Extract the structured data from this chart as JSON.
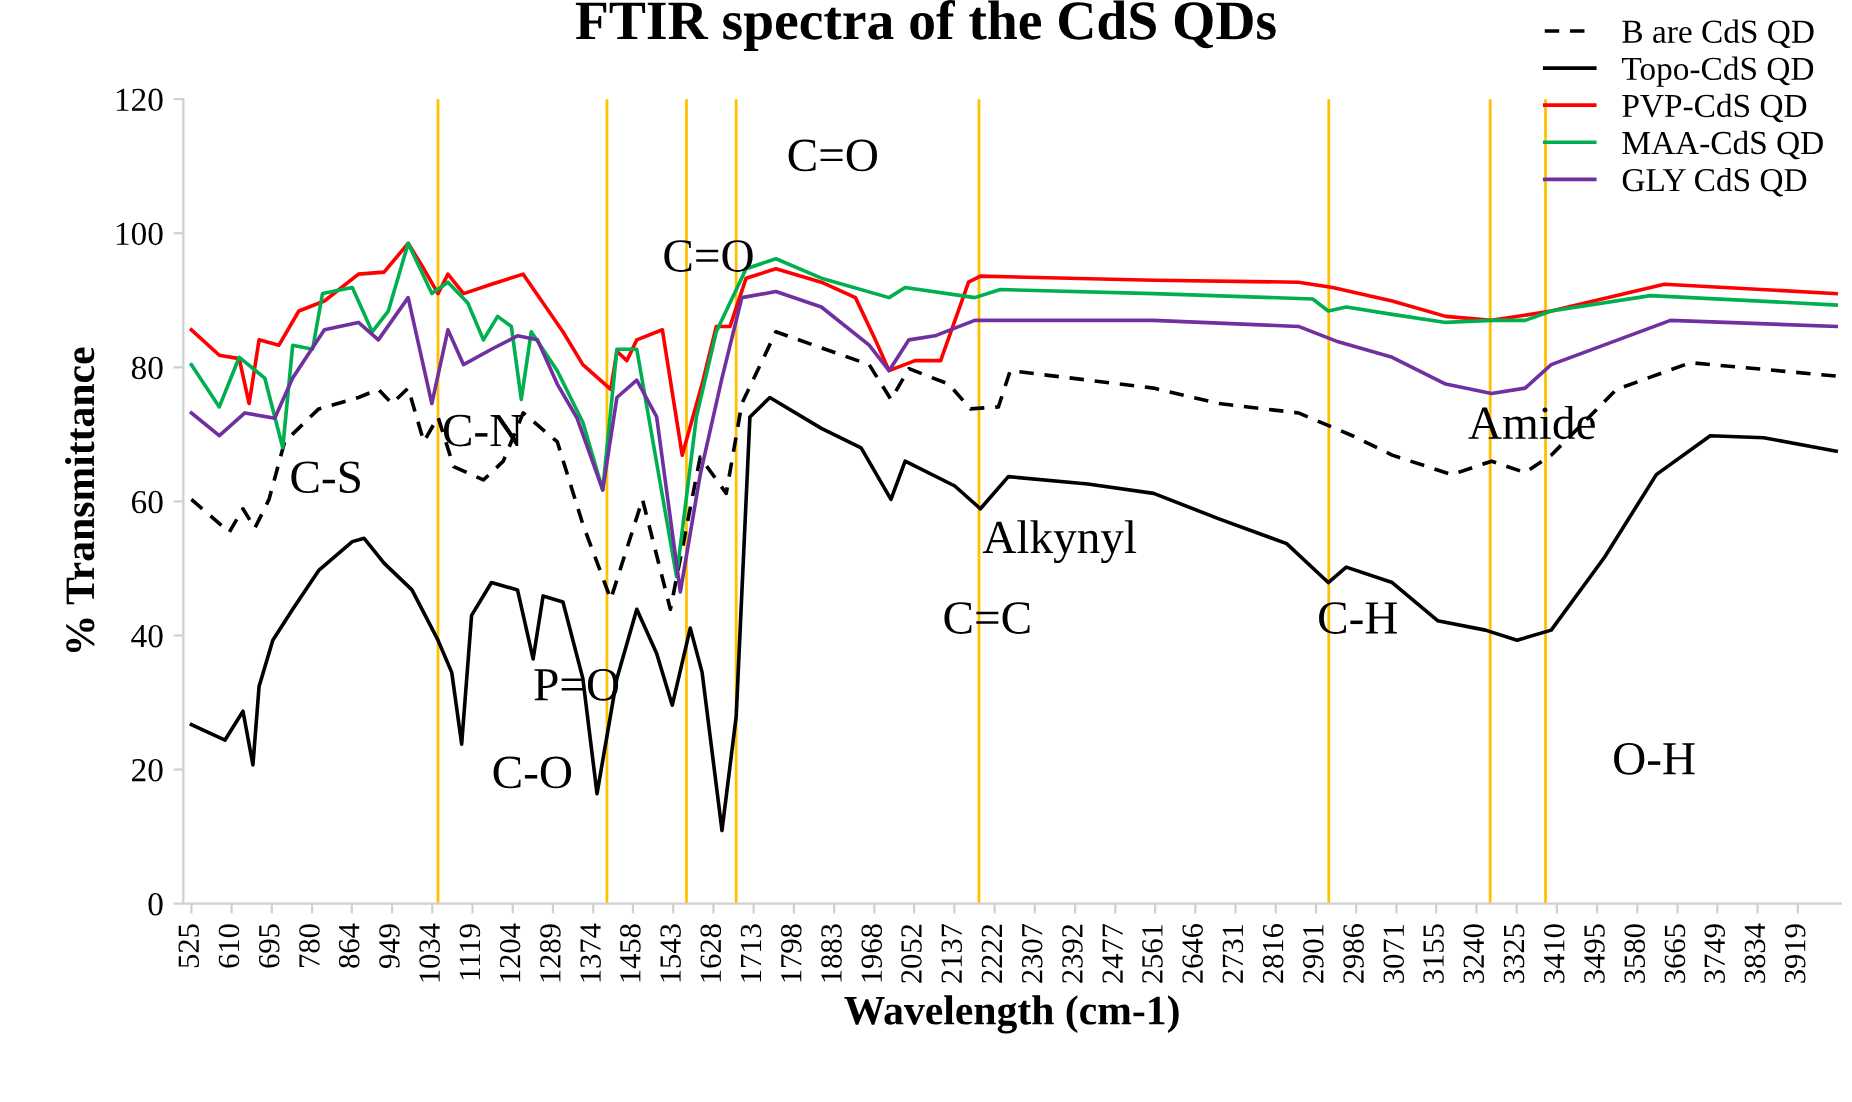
{
  "chart_data": {
    "type": "line",
    "title": "FTIR spectra of the CdS QDs",
    "xlabel": "Wavelength (cm-1)",
    "ylabel": "% Transmittance",
    "xlim": [
      508,
      4010
    ],
    "xticks": [
      525,
      610,
      695,
      780,
      864,
      949,
      1034,
      1119,
      1204,
      1289,
      1374,
      1458,
      1543,
      1628,
      1713,
      1798,
      1883,
      1968,
      2052,
      2137,
      2222,
      2307,
      2392,
      2477,
      2561,
      2646,
      2731,
      2816,
      2901,
      2986,
      3071,
      3155,
      3240,
      3325,
      3410,
      3495,
      3580,
      3665,
      3749,
      3834,
      3919
    ],
    "ylim": [
      0,
      120
    ],
    "yticks": [
      0,
      20,
      40,
      60,
      80,
      100,
      120
    ],
    "grid": false,
    "legend": "top right",
    "series": [
      {
        "name": "B are CdS QD",
        "color": "#000000",
        "line_style": "dashed",
        "x": [
          525,
          605,
          634,
          659,
          689,
          722,
          794,
          878,
          920,
          949,
          983,
          1016,
          1046,
          1079,
          1142,
          1184,
          1226,
          1298,
          1352,
          1411,
          1478,
          1537,
          1600,
          1655,
          1688,
          1760,
          1957,
          2003,
          2041,
          2125,
          2171,
          2230,
          2255,
          2558,
          2696,
          2864,
          2978,
          3062,
          3188,
          3272,
          3343,
          3398,
          3536,
          3692,
          4000
        ],
        "values": [
          60.3,
          55.4,
          58.9,
          56,
          60.3,
          68.9,
          73.8,
          75.5,
          76.7,
          74.6,
          76.9,
          68.9,
          72.6,
          65.2,
          63.2,
          66,
          73.2,
          68.9,
          56.6,
          45.4,
          60.3,
          43.9,
          66.6,
          61.2,
          74.6,
          85.3,
          80.4,
          75.2,
          79.8,
          77.5,
          73.8,
          74.1,
          79.5,
          76.9,
          74.6,
          73.2,
          69.8,
          66.9,
          64,
          66,
          64.3,
          66.9,
          76.7,
          80.7,
          78.7
        ]
      },
      {
        "name": "Topo-CdS QD",
        "color": "#000000",
        "line_style": "solid",
        "x": [
          525,
          596,
          634,
          655,
          668,
          697,
          739,
          794,
          865,
          890,
          932,
          991,
          1046,
          1075,
          1096,
          1117,
          1159,
          1214,
          1247,
          1268,
          1310,
          1352,
          1382,
          1424,
          1466,
          1508,
          1541,
          1579,
          1604,
          1646,
          1676,
          1705,
          1747,
          1856,
          1940,
          2003,
          2033,
          2138,
          2192,
          2251,
          2419,
          2558,
          2696,
          2839,
          2927,
          2965,
          3062,
          3158,
          3259,
          3326,
          3398,
          3511,
          3620,
          3734,
          3847,
          4000
        ],
        "values": [
          26.7,
          24.4,
          28.7,
          20.7,
          32.4,
          39.3,
          43.9,
          49.7,
          54,
          54.5,
          50.8,
          46.8,
          39.3,
          34.5,
          23.8,
          43,
          47.9,
          46.8,
          36.5,
          45.9,
          45,
          33.6,
          16.4,
          33.6,
          43.9,
          37.3,
          29.6,
          41.1,
          34.5,
          10.9,
          27.9,
          72.6,
          75.5,
          70.9,
          68,
          60.3,
          66,
          62.3,
          58.9,
          63.7,
          62.6,
          61.2,
          57.4,
          53.7,
          47.9,
          50.2,
          47.9,
          42.2,
          40.8,
          39.3,
          40.8,
          51.7,
          64,
          69.8,
          69.5,
          67.5
        ]
      },
      {
        "name": "PVP-CdS QD",
        "color": "#ff0000",
        "line_style": "solid",
        "x": [
          525,
          584,
          626,
          647,
          668,
          710,
          752,
          806,
          878,
          932,
          983,
          1016,
          1046,
          1067,
          1100,
          1159,
          1226,
          1268,
          1310,
          1352,
          1411,
          1424,
          1445,
          1466,
          1520,
          1562,
          1604,
          1634,
          1663,
          1697,
          1760,
          1856,
          1928,
          1970,
          1999,
          2054,
          2108,
          2167,
          2192,
          2558,
          2864,
          2936,
          3062,
          3175,
          3272,
          3398,
          3637,
          4000
        ],
        "values": [
          85.6,
          81.8,
          81.3,
          74.6,
          84.1,
          83.3,
          88.4,
          89.9,
          93.9,
          94.2,
          98.5,
          94.7,
          91,
          93.9,
          91,
          92.4,
          93.9,
          89.6,
          85.3,
          80.4,
          76.7,
          82.4,
          81,
          84.1,
          85.6,
          66.9,
          77.5,
          86.1,
          86.1,
          93.3,
          94.7,
          92.7,
          90.4,
          84.1,
          79.5,
          81,
          81,
          92.7,
          93.6,
          93,
          92.7,
          91.9,
          89.9,
          87.6,
          87,
          88.4,
          92.4,
          91
        ]
      },
      {
        "name": "MAA-CdS QD",
        "color": "#00b050",
        "line_style": "solid",
        "x": [
          525,
          584,
          626,
          680,
          718,
          739,
          781,
          802,
          865,
          907,
          941,
          983,
          1033,
          1067,
          1109,
          1142,
          1172,
          1201,
          1222,
          1243,
          1298,
          1352,
          1394,
          1424,
          1466,
          1550,
          1592,
          1634,
          1697,
          1760,
          1856,
          1999,
          2033,
          2180,
          2234,
          2558,
          2894,
          2927,
          2965,
          3062,
          3175,
          3272,
          3343,
          3398,
          3608,
          4000
        ],
        "values": [
          80.4,
          74.1,
          81.5,
          78.4,
          68,
          83.3,
          82.7,
          91,
          91.9,
          85.3,
          88.4,
          98.5,
          91,
          92.7,
          89.6,
          84.1,
          87.6,
          86.1,
          75.2,
          85.3,
          79.5,
          71.8,
          61.7,
          82.7,
          82.7,
          48.8,
          72.6,
          85.3,
          94.7,
          96.2,
          93.3,
          90.4,
          91.9,
          90.4,
          91.6,
          91,
          90.2,
          88.4,
          89,
          87.9,
          86.7,
          87,
          87,
          88.4,
          90.7,
          89.3
        ]
      },
      {
        "name": "GLY CdS QD",
        "color": "#7030a0",
        "line_style": "solid",
        "x": [
          525,
          584,
          638,
          701,
          739,
          806,
          878,
          920,
          983,
          1033,
          1067,
          1100,
          1159,
          1214,
          1256,
          1298,
          1340,
          1394,
          1424,
          1466,
          1508,
          1558,
          1600,
          1646,
          1688,
          1760,
          1856,
          1957,
          1999,
          2041,
          2096,
          2180,
          2558,
          2864,
          2948,
          3062,
          3175,
          3272,
          3343,
          3398,
          3650,
          4000
        ],
        "values": [
          73.2,
          69.8,
          73.2,
          72.4,
          78.4,
          85.6,
          86.7,
          84.1,
          90.4,
          74.6,
          85.6,
          80.4,
          82.7,
          84.7,
          84.1,
          77.5,
          72.4,
          61.7,
          75.5,
          78.1,
          72.6,
          46.5,
          64,
          78.4,
          90.4,
          91.3,
          89,
          83.3,
          79.5,
          84.1,
          84.7,
          87,
          87,
          86.1,
          83.8,
          81.5,
          77.5,
          76.1,
          76.9,
          80.4,
          87,
          86.1
        ]
      }
    ],
    "ref_lines": [
      {
        "axis": "x",
        "value": 1046,
        "color": "#ffc000"
      },
      {
        "axis": "x",
        "value": 1403,
        "color": "#ffc000"
      },
      {
        "axis": "x",
        "value": 1571,
        "color": "#ffc000"
      },
      {
        "axis": "x",
        "value": 1676,
        "color": "#ffc000"
      },
      {
        "axis": "x",
        "value": 2189,
        "color": "#ffc000"
      },
      {
        "axis": "x",
        "value": 2928,
        "color": "#ffc000"
      },
      {
        "axis": "x",
        "value": 3269,
        "color": "#ffc000"
      },
      {
        "axis": "x",
        "value": 3386,
        "color": "#ffc000"
      }
    ],
    "annotations": [
      "C-S",
      "C-N",
      "P=O",
      "C-O",
      "C=O",
      "C=O",
      "Alkynyl",
      "C=C",
      "C-H",
      "Amide",
      "O-H"
    ]
  }
}
